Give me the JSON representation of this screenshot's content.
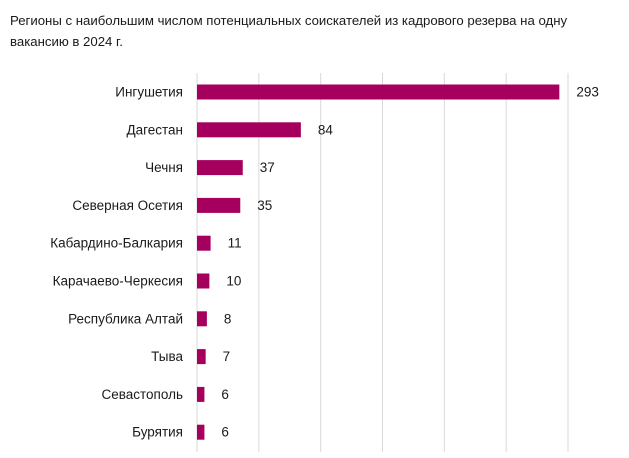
{
  "chart_data": {
    "type": "bar",
    "orientation": "horizontal",
    "title": "Регионы с наибольшим числом потенциальных соискателей из кадрового резерва на одну вакансию в 2024 г.",
    "categories": [
      "Ингушетия",
      "Дагестан",
      "Чечня",
      "Северная Осетия",
      "Кабардино-Балкария",
      "Карачаево-Черкесия",
      "Республика Алтай",
      "Тыва",
      "Севастополь",
      "Бурятия"
    ],
    "values": [
      293,
      84,
      37,
      35,
      11,
      10,
      8,
      7,
      6,
      6
    ],
    "value_labels": [
      "293",
      "84",
      "37",
      "35",
      "11",
      "10",
      "8",
      "7",
      "6",
      "6"
    ],
    "xlim": [
      0,
      300
    ],
    "grid": true,
    "legend": "none",
    "colors": {
      "bar": "#a6005f",
      "grid": "#d9d9d9",
      "text": "#1a1a1a"
    }
  }
}
